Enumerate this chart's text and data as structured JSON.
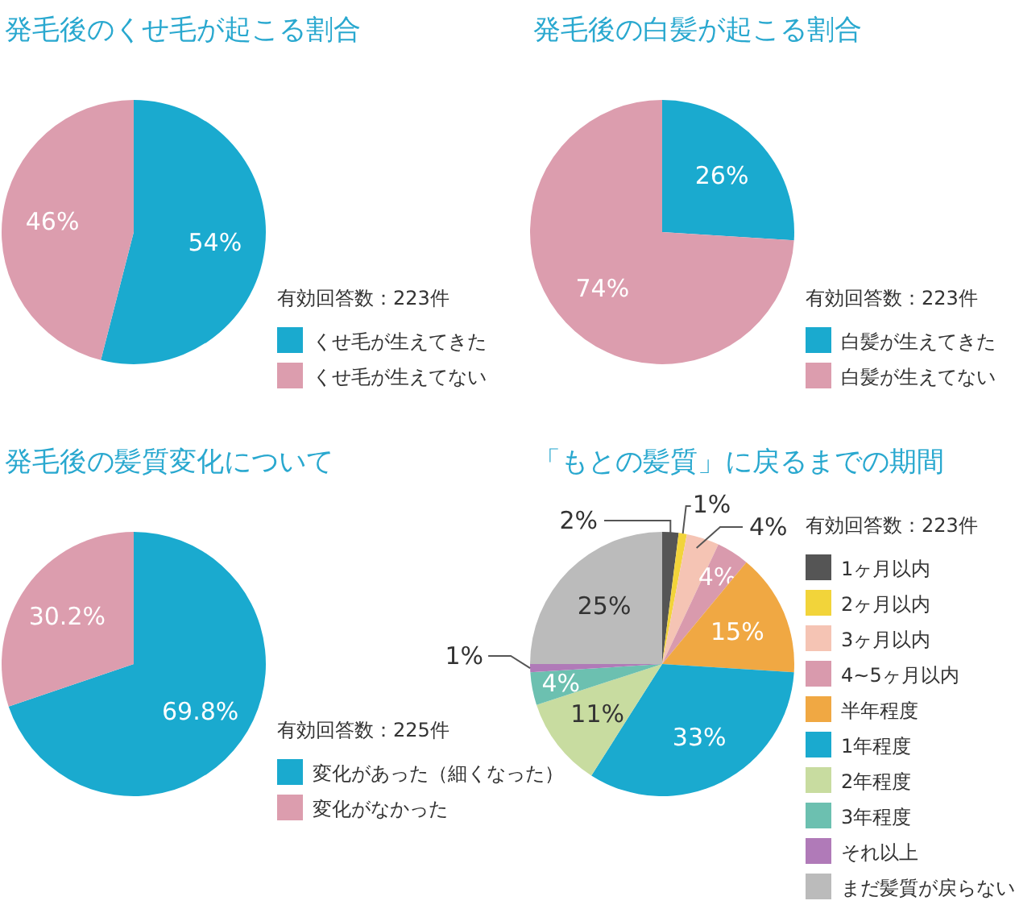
{
  "chart_data": [
    {
      "type": "pie",
      "title": "発毛後のくせ毛が起こる割合",
      "categories": [
        "くせ毛が生えてきた",
        "くせ毛が生えてない"
      ],
      "values": [
        54,
        46
      ],
      "colors": [
        "#1aaacf",
        "#dc9dae"
      ],
      "value_labels": [
        "54%",
        "46%"
      ],
      "annotations": [
        "有効回答数：223件"
      ],
      "legend": "bottom right"
    },
    {
      "type": "pie",
      "title": "発毛後の白髪が起こる割合",
      "categories": [
        "白髪が生えてきた",
        "白髪が生えてない"
      ],
      "values": [
        26,
        74
      ],
      "colors": [
        "#1aaacf",
        "#dc9dae"
      ],
      "value_labels": [
        "26%",
        "74%"
      ],
      "annotations": [
        "有効回答数：223件"
      ],
      "legend": "bottom right"
    },
    {
      "type": "pie",
      "title": "発毛後の髪質変化について",
      "categories": [
        "変化があった（細くなった）",
        "変化がなかった"
      ],
      "values": [
        69.8,
        30.2
      ],
      "colors": [
        "#1aaacf",
        "#dc9dae"
      ],
      "value_labels": [
        "69.8%",
        "30.2%"
      ],
      "annotations": [
        "有効回答数：225件"
      ],
      "legend": "bottom right"
    },
    {
      "type": "pie",
      "title": "「もとの髪質」に戻るまでの期間",
      "categories": [
        "1ヶ月以内",
        "2ヶ月以内",
        "3ヶ月以内",
        "4~5ヶ月以内",
        "半年程度",
        "1年程度",
        "2年程度",
        "3年程度",
        "それ以上",
        "まだ髪質が戻らない"
      ],
      "values": [
        2,
        1,
        4,
        4,
        15,
        33,
        11,
        4,
        1,
        25
      ],
      "colors": [
        "#555555",
        "#f2d43a",
        "#f5c4b4",
        "#d99aad",
        "#f0a843",
        "#1aaacf",
        "#c8dca0",
        "#6cc0b0",
        "#b07ab8",
        "#bbbbbb"
      ],
      "value_labels": [
        "2%",
        "1%",
        "4%",
        "4%",
        "15%",
        "33%",
        "11%",
        "4%",
        "1%",
        "25%"
      ],
      "annotations": [
        "有効回答数：223件"
      ],
      "legend": "right"
    }
  ]
}
